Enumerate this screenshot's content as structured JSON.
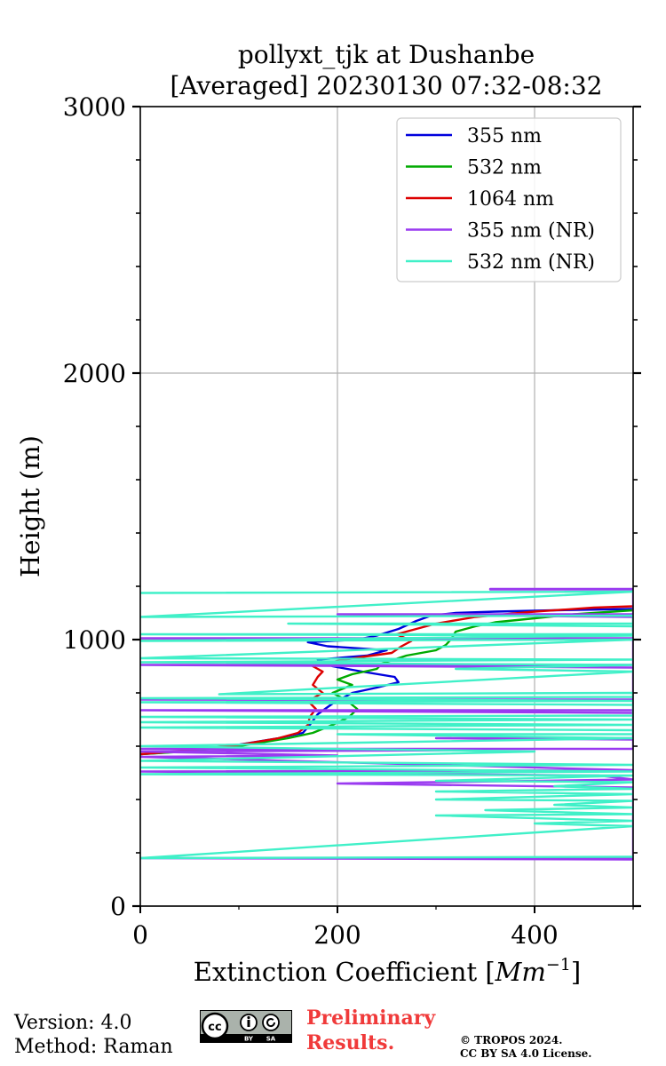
{
  "chart_data": {
    "type": "line",
    "title_line1": "pollyxt_tjk at Dushanbe",
    "title_line2": "[Averaged] 20230130 07:32-08:32",
    "xlabel": "Extinction Coefficient [",
    "xlabel_unit": "Mm",
    "xlabel_exp": "−1",
    "xlabel_close": "]",
    "ylabel": "Height (m)",
    "xlim": [
      0,
      500
    ],
    "ylim": [
      0,
      3000
    ],
    "x_ticks": [
      0,
      200,
      400
    ],
    "y_ticks": [
      0,
      1000,
      2000,
      3000
    ],
    "grid": true,
    "legend_position": "top-right",
    "series": [
      {
        "name": "355 nm",
        "color": "#0000dd",
        "points": [
          [
            0,
            570
          ],
          [
            40,
            580
          ],
          [
            90,
            600
          ],
          [
            140,
            630
          ],
          [
            165,
            650
          ],
          [
            172,
            680
          ],
          [
            180,
            720
          ],
          [
            195,
            760
          ],
          [
            215,
            800
          ],
          [
            240,
            820
          ],
          [
            262,
            840
          ],
          [
            258,
            860
          ],
          [
            225,
            880
          ],
          [
            195,
            900
          ],
          [
            180,
            925
          ],
          [
            230,
            940
          ],
          [
            250,
            960
          ],
          [
            190,
            975
          ],
          [
            170,
            990
          ],
          [
            220,
            1000
          ],
          [
            240,
            1015
          ],
          [
            262,
            1040
          ],
          [
            280,
            1070
          ],
          [
            295,
            1090
          ],
          [
            320,
            1100
          ],
          [
            360,
            1105
          ],
          [
            420,
            1110
          ],
          [
            500,
            1115
          ]
        ]
      },
      {
        "name": "532 nm",
        "color": "#00aa00",
        "points": [
          [
            0,
            570
          ],
          [
            45,
            580
          ],
          [
            100,
            600
          ],
          [
            150,
            630
          ],
          [
            175,
            650
          ],
          [
            195,
            680
          ],
          [
            212,
            710
          ],
          [
            220,
            740
          ],
          [
            210,
            770
          ],
          [
            195,
            800
          ],
          [
            215,
            830
          ],
          [
            200,
            850
          ],
          [
            215,
            870
          ],
          [
            240,
            890
          ],
          [
            245,
            910
          ],
          [
            270,
            940
          ],
          [
            300,
            960
          ],
          [
            310,
            980
          ],
          [
            315,
            1000
          ],
          [
            320,
            1030
          ],
          [
            340,
            1050
          ],
          [
            360,
            1065
          ],
          [
            400,
            1080
          ],
          [
            440,
            1095
          ],
          [
            480,
            1105
          ],
          [
            500,
            1110
          ]
        ]
      },
      {
        "name": "1064 nm",
        "color": "#dd0000",
        "points": [
          [
            0,
            570
          ],
          [
            50,
            585
          ],
          [
            100,
            605
          ],
          [
            140,
            630
          ],
          [
            160,
            650
          ],
          [
            170,
            680
          ],
          [
            172,
            710
          ],
          [
            178,
            740
          ],
          [
            170,
            770
          ],
          [
            185,
            800
          ],
          [
            175,
            830
          ],
          [
            180,
            860
          ],
          [
            185,
            880
          ],
          [
            175,
            900
          ],
          [
            200,
            920
          ],
          [
            225,
            935
          ],
          [
            255,
            950
          ],
          [
            265,
            975
          ],
          [
            275,
            995
          ],
          [
            260,
            1020
          ],
          [
            280,
            1040
          ],
          [
            300,
            1060
          ],
          [
            340,
            1085
          ],
          [
            400,
            1105
          ],
          [
            460,
            1120
          ],
          [
            500,
            1125
          ]
        ]
      },
      {
        "name": "355 nm (NR)",
        "color": "#9a3af0",
        "points": [
          [
            500,
            1190
          ],
          [
            355,
            1190
          ],
          [
            355,
            1188
          ],
          [
            500,
            1188
          ],
          [
            500,
            1095
          ],
          [
            200,
            1095
          ],
          [
            500,
            1085
          ],
          [
            500,
            1005
          ],
          [
            0,
            1005
          ],
          [
            500,
            1000
          ],
          [
            500,
            905
          ],
          [
            0,
            905
          ],
          [
            500,
            895
          ],
          [
            500,
            775
          ],
          [
            0,
            775
          ],
          [
            500,
            772
          ],
          [
            500,
            735
          ],
          [
            0,
            735
          ],
          [
            500,
            725
          ],
          [
            500,
            630
          ],
          [
            300,
            630
          ],
          [
            500,
            625
          ],
          [
            500,
            590
          ],
          [
            0,
            590
          ],
          [
            350,
            585
          ],
          [
            0,
            580
          ],
          [
            200,
            565
          ],
          [
            0,
            560
          ],
          [
            500,
            510
          ],
          [
            0,
            505
          ],
          [
            465,
            490
          ],
          [
            500,
            475
          ],
          [
            200,
            460
          ],
          [
            500,
            445
          ],
          [
            500,
            180
          ],
          [
            0,
            180
          ],
          [
            500,
            175
          ]
        ]
      },
      {
        "name": "532 nm (NR)",
        "color": "#40f0c8",
        "points": [
          [
            0,
            1175
          ],
          [
            500,
            1180
          ],
          [
            0,
            1085
          ],
          [
            500,
            1090
          ],
          [
            500,
            1060
          ],
          [
            150,
            1060
          ],
          [
            500,
            1050
          ],
          [
            500,
            1020
          ],
          [
            0,
            1020
          ],
          [
            500,
            1015
          ],
          [
            0,
            995
          ],
          [
            500,
            1000
          ],
          [
            0,
            930
          ],
          [
            500,
            925
          ],
          [
            0,
            915
          ],
          [
            500,
            905
          ],
          [
            320,
            890
          ],
          [
            500,
            880
          ],
          [
            80,
            795
          ],
          [
            500,
            800
          ],
          [
            500,
            785
          ],
          [
            0,
            780
          ],
          [
            500,
            770
          ],
          [
            0,
            765
          ],
          [
            500,
            755
          ],
          [
            500,
            715
          ],
          [
            0,
            710
          ],
          [
            500,
            700
          ],
          [
            0,
            690
          ],
          [
            500,
            680
          ],
          [
            0,
            670
          ],
          [
            500,
            660
          ],
          [
            500,
            645
          ],
          [
            200,
            645
          ],
          [
            500,
            630
          ],
          [
            0,
            600
          ],
          [
            400,
            580
          ],
          [
            0,
            545
          ],
          [
            500,
            530
          ],
          [
            0,
            520
          ],
          [
            500,
            505
          ],
          [
            0,
            495
          ],
          [
            500,
            490
          ],
          [
            300,
            470
          ],
          [
            500,
            465
          ],
          [
            420,
            450
          ],
          [
            500,
            440
          ],
          [
            300,
            430
          ],
          [
            500,
            420
          ],
          [
            300,
            400
          ],
          [
            500,
            395
          ],
          [
            420,
            380
          ],
          [
            500,
            370
          ],
          [
            350,
            360
          ],
          [
            500,
            345
          ],
          [
            300,
            340
          ],
          [
            500,
            320
          ],
          [
            400,
            310
          ],
          [
            500,
            300
          ],
          [
            0,
            180
          ],
          [
            500,
            185
          ]
        ]
      }
    ]
  },
  "footer": {
    "version": "Version: 4.0",
    "method": "Method: Raman",
    "prelim_line1": "Preliminary",
    "prelim_line2": "Results.",
    "copyright_line1": "© TROPOS 2024.",
    "copyright_line2": "CC BY SA 4.0 License.",
    "cc_text": "cc",
    "by_text": "BY",
    "sa_text": "SA"
  }
}
